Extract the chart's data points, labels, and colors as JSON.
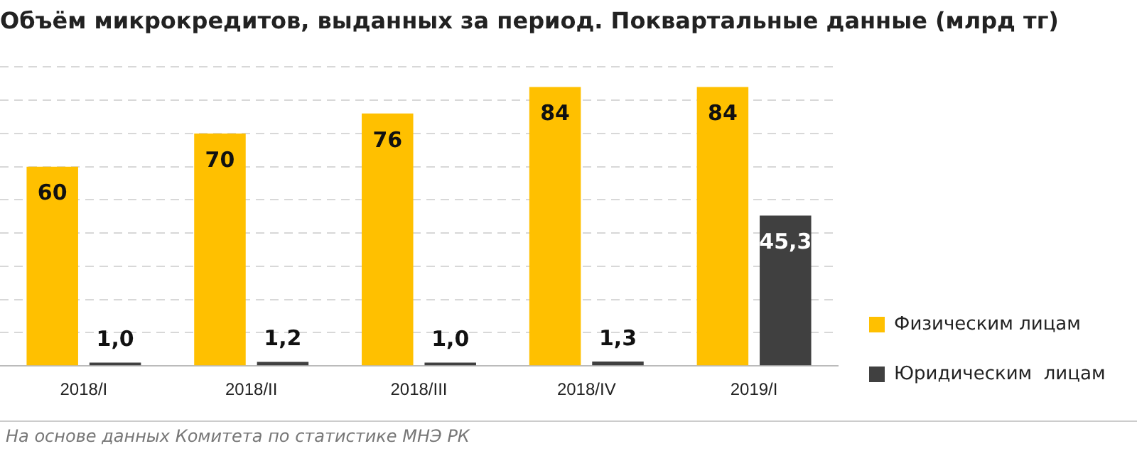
{
  "chart_data": {
    "type": "bar",
    "title": "Объём микрокредитов, выданных за период. Поквартальные данные (млрд тг)",
    "categories": [
      "2018/I",
      "2018/II",
      "2018/III",
      "2018/IV",
      "2019/I"
    ],
    "series": [
      {
        "name": "Физическим лицам",
        "color": "#ffc000",
        "values": [
          60,
          70,
          76,
          84,
          84
        ],
        "value_labels": [
          "60",
          "70",
          "76",
          "84",
          "84"
        ]
      },
      {
        "name": "Юридическим  лицам",
        "color": "#404040",
        "values": [
          1.0,
          1.2,
          1.0,
          1.3,
          45.3
        ],
        "value_labels": [
          "1,0",
          "1,2",
          "1,0",
          "1,3",
          "45,3"
        ]
      }
    ],
    "ylim": [
      0,
      90
    ],
    "yticks": [
      {
        "value": 0,
        "label": null
      },
      {
        "value": 10,
        "label": null
      },
      {
        "value": 20,
        "label": null
      },
      {
        "value": 30,
        "label": null
      },
      {
        "value": 40,
        "label": null
      },
      {
        "value": 50,
        "label": null
      },
      {
        "value": 60,
        "label": null
      },
      {
        "value": 70,
        "label": null
      },
      {
        "value": 80,
        "label": null
      },
      {
        "value": 90,
        "label": null
      }
    ],
    "grid": "y",
    "legend": "right",
    "tick_labels": "x",
    "annotations": [
      "На основе данных Комитета по статистике МНЭ РК"
    ]
  }
}
